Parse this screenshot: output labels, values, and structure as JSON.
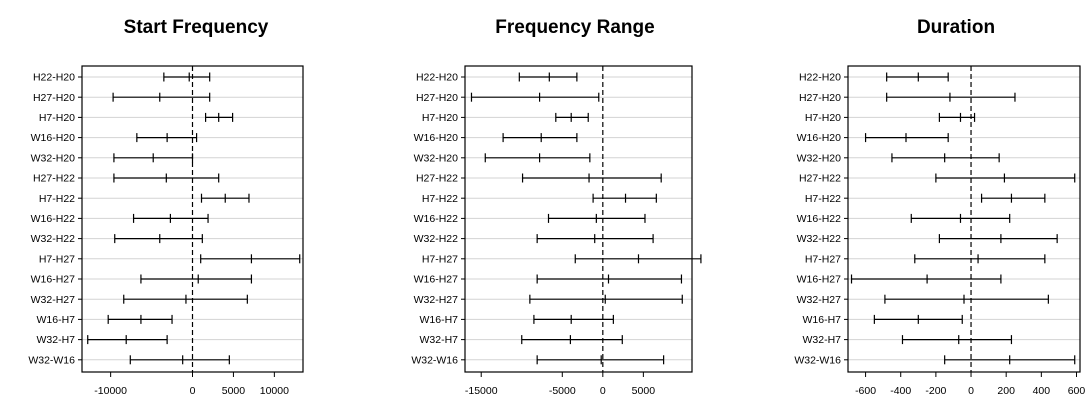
{
  "colors": {
    "grid": "#d3d3d3",
    "ink": "#000000",
    "background": "#ffffff"
  },
  "chart_data": [
    {
      "type": "interval",
      "title": "Start Frequency",
      "grid": true,
      "xlim": [
        -13500,
        13500
      ],
      "xticks": [
        -10000,
        0,
        5000,
        10000
      ],
      "reference_line": 0,
      "categories": [
        "H22-H20",
        "H27-H20",
        "H7-H20",
        "W16-H20",
        "W32-H20",
        "H27-H22",
        "H7-H22",
        "W16-H22",
        "W32-H22",
        "H7-H27",
        "W16-H27",
        "W32-H27",
        "W16-H7",
        "W32-H7",
        "W32-W16"
      ],
      "estimates": [
        -400,
        -4000,
        3200,
        -3100,
        -4800,
        -3200,
        4000,
        -2700,
        -4000,
        7200,
        700,
        -800,
        -6300,
        -8100,
        -1200
      ],
      "lower": [
        -3500,
        -9700,
        1600,
        -6800,
        -9600,
        -9600,
        1100,
        -7200,
        -9500,
        1000,
        -6300,
        -8400,
        -10300,
        -12800,
        -7600
      ],
      "upper": [
        2100,
        2100,
        4900,
        500,
        0,
        3200,
        6900,
        1900,
        1200,
        13100,
        7200,
        6700,
        -2500,
        -3100,
        4500
      ]
    },
    {
      "type": "interval",
      "title": "Frequency Range",
      "grid": true,
      "xlim": [
        -17000,
        11000
      ],
      "xticks": [
        -15000,
        -5000,
        0,
        5000
      ],
      "reference_line": 0,
      "categories": [
        "H22-H20",
        "H27-H20",
        "H7-H20",
        "W16-H20",
        "W32-H20",
        "H27-H22",
        "H7-H22",
        "W16-H22",
        "W32-H22",
        "H7-H27",
        "W16-H27",
        "W32-H27",
        "W16-H7",
        "W32-H7",
        "W32-W16"
      ],
      "estimates": [
        -6600,
        -7800,
        -3900,
        -7600,
        -7800,
        -1700,
        2800,
        -800,
        -1000,
        4400,
        700,
        300,
        -3900,
        -4000,
        -200
      ],
      "lower": [
        -10300,
        -16200,
        -5800,
        -12300,
        -14500,
        -9900,
        -1200,
        -6700,
        -8100,
        -3400,
        -8100,
        -9000,
        -8500,
        -10000,
        -8100
      ],
      "upper": [
        -3200,
        -500,
        -1800,
        -3200,
        -1600,
        7200,
        6600,
        5200,
        6200,
        12100,
        9700,
        9800,
        1300,
        2400,
        7500
      ]
    },
    {
      "type": "interval",
      "title": "Duration",
      "grid": true,
      "xlim": [
        -700,
        620
      ],
      "xticks": [
        -600,
        -400,
        -200,
        0,
        200,
        400,
        600
      ],
      "reference_line": 0,
      "categories": [
        "H22-H20",
        "H27-H20",
        "H7-H20",
        "W16-H20",
        "W32-H20",
        "H27-H22",
        "H7-H22",
        "W16-H22",
        "W32-H22",
        "H7-H27",
        "W16-H27",
        "W32-H27",
        "W16-H7",
        "W32-H7",
        "W32-W16"
      ],
      "estimates": [
        -300,
        -120,
        -60,
        -370,
        -150,
        190,
        230,
        -60,
        170,
        40,
        -250,
        -40,
        -300,
        -70,
        220
      ],
      "lower": [
        -480,
        -480,
        -180,
        -600,
        -450,
        -200,
        60,
        -340,
        -180,
        -320,
        -680,
        -490,
        -550,
        -390,
        -150
      ],
      "upper": [
        -130,
        250,
        20,
        -130,
        160,
        590,
        420,
        220,
        490,
        420,
        170,
        440,
        -50,
        230,
        590
      ]
    }
  ]
}
